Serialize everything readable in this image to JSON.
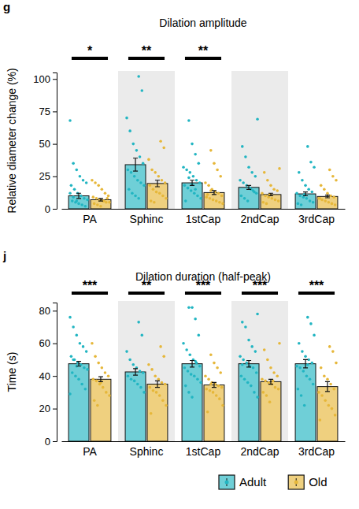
{
  "chart_data": [
    {
      "type": "bar",
      "panel": "g",
      "title": "Dilation amplitude",
      "y_label": "Relative diameter change (%)",
      "categories": [
        "PA",
        "Sphinc",
        "1stCap",
        "2ndCap",
        "3rdCap"
      ],
      "ylim": [
        0,
        105
      ],
      "yticks": [
        0,
        25,
        50,
        75,
        100
      ],
      "significance": [
        "*",
        "**",
        "**",
        null,
        null
      ],
      "series": [
        {
          "name": "Adult",
          "color": "#22b5c2",
          "values": [
            10,
            34,
            20,
            16.5,
            11.5
          ],
          "errors": [
            2,
            5,
            2,
            1.5,
            1.5
          ],
          "points": [
            [
              68,
              35,
              30,
              25,
              22,
              20,
              18,
              15,
              12,
              10,
              8,
              7,
              6,
              5,
              4,
              3,
              2,
              12,
              9,
              6
            ],
            [
              102,
              91,
              70,
              60,
              50,
              45,
              40,
              35,
              30,
              28,
              25,
              22,
              20,
              18,
              15,
              12,
              10,
              8
            ],
            [
              68,
              50,
              42,
              35,
              32,
              30,
              28,
              25,
              22,
              20,
              18,
              16,
              14,
              12,
              10,
              8,
              6,
              24,
              19,
              15
            ],
            [
              69,
              48,
              40,
              32,
              28,
              25,
              22,
              20,
              18,
              16,
              14,
              12,
              10,
              8,
              6,
              15,
              13
            ],
            [
              48,
              36,
              32,
              28,
              22,
              18,
              15,
              13,
              12,
              10,
              9,
              8,
              6,
              5,
              4,
              3,
              11
            ]
          ]
        },
        {
          "name": "Old",
          "color": "#e6b73a",
          "values": [
            7,
            19.5,
            12.5,
            11,
            9.5
          ],
          "errors": [
            1,
            2.5,
            1.5,
            1,
            1
          ],
          "points": [
            [
              22,
              20,
              18,
              15,
              12,
              10,
              9,
              8,
              7,
              6,
              5,
              5,
              4,
              3,
              2,
              6,
              8
            ],
            [
              52,
              47,
              38,
              30,
              28,
              25,
              22,
              20,
              18,
              15,
              13,
              12,
              10,
              8,
              6,
              5
            ],
            [
              45,
              35,
              30,
              25,
              20,
              18,
              15,
              13,
              12,
              10,
              9,
              8,
              7,
              6,
              5,
              4,
              11,
              14
            ],
            [
              31,
              28,
              22,
              18,
              15,
              14,
              12,
              10,
              9,
              8,
              7,
              6,
              5,
              4,
              11
            ],
            [
              30,
              25,
              22,
              18,
              15,
              12,
              10,
              9,
              8,
              7,
              6,
              5,
              4,
              3,
              8
            ]
          ]
        }
      ]
    },
    {
      "type": "bar",
      "panel": "j",
      "title": "Dilation duration (half-peak)",
      "y_label": "Time (s)",
      "categories": [
        "PA",
        "Sphinc",
        "1stCap",
        "2ndCap",
        "3rdCap"
      ],
      "ylim": [
        0,
        85
      ],
      "yticks": [
        0,
        20,
        40,
        60,
        80
      ],
      "significance": [
        "***",
        "**",
        "***",
        "***",
        "***"
      ],
      "legend": "bottom-right",
      "series": [
        {
          "name": "Adult",
          "color": "#22b5c2",
          "values": [
            47.5,
            42.5,
            47.5,
            47.5,
            47.5
          ],
          "errors": [
            1.5,
            2,
            2,
            2,
            2.5
          ],
          "points": [
            [
              76,
              70,
              65,
              60,
              58,
              55,
              52,
              50,
              48,
              47,
              45,
              44,
              42,
              40,
              38,
              35,
              32,
              29,
              50,
              46
            ],
            [
              73,
              65,
              55,
              50,
              47,
              45,
              43,
              42,
              40,
              38,
              37,
              35,
              33,
              30
            ],
            [
              82,
              82,
              75,
              65,
              60,
              56,
              53,
              50,
              48,
              46,
              45,
              43,
              41,
              40,
              38,
              36,
              34,
              30,
              27,
              49
            ],
            [
              78,
              73,
              70,
              62,
              58,
              55,
              52,
              50,
              48,
              46,
              45,
              42,
              40,
              38,
              36,
              34,
              30,
              27,
              47
            ],
            [
              76,
              72,
              65,
              60,
              55,
              52,
              50,
              48,
              46,
              45,
              43,
              40,
              38,
              35,
              32,
              28,
              22,
              47
            ]
          ]
        },
        {
          "name": "Old",
          "color": "#e6b73a",
          "values": [
            38,
            35,
            34.5,
            36.5,
            33.5
          ],
          "errors": [
            1.5,
            2,
            1.5,
            1.5,
            3
          ],
          "points": [
            [
              60,
              52,
              48,
              45,
              42,
              40,
              38,
              37,
              35,
              33,
              30,
              28,
              25,
              22,
              36
            ],
            [
              58,
              52,
              47,
              44,
              40,
              38,
              36,
              35,
              33,
              31,
              30,
              28,
              25,
              22,
              17
            ],
            [
              53,
              48,
              45,
              42,
              40,
              38,
              36,
              35,
              34,
              33,
              32,
              31,
              30,
              28,
              26,
              22,
              18,
              35
            ],
            [
              60,
              56,
              50,
              45,
              42,
              40,
              38,
              37,
              36,
              35,
              33,
              32,
              30,
              28,
              24,
              37
            ],
            [
              58,
              55,
              48,
              45,
              40,
              38,
              35,
              32,
              30,
              28,
              25,
              22,
              20,
              16,
              13
            ]
          ]
        }
      ]
    }
  ]
}
